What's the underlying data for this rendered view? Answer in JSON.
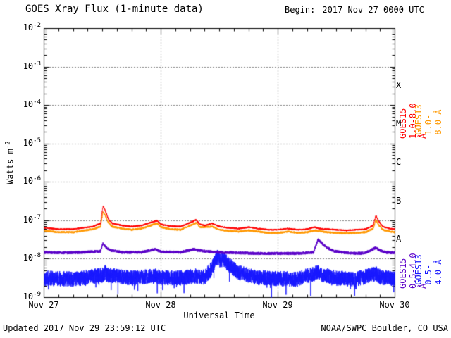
{
  "header": {
    "title": "GOES Xray Flux (1-minute data)",
    "begin_label": "Begin:",
    "begin_value": "2017 Nov 27 0000 UTC"
  },
  "footer": {
    "updated": "Updated 2017 Nov 29 23:59:12 UTC",
    "credit": "NOAA/SWPC Boulder, CO USA"
  },
  "axes": {
    "ylabel_base": "Watts m",
    "ylabel_exp": "-2",
    "xlabel": "Universal Time",
    "y_tick_exponents": [
      "-2",
      "-3",
      "-4",
      "-5",
      "-6",
      "-7",
      "-8",
      "-9"
    ],
    "x_tick_labels": [
      "Nov 27",
      "Nov 28",
      "Nov 29",
      "Nov 30"
    ]
  },
  "legend": {
    "goes15_long": {
      "text": "GOES15 1.0-8.0 Å",
      "color": "#ff0000"
    },
    "goes13_long": {
      "text": "GOES13 1.0-8.0 Å",
      "color": "#ff9900"
    },
    "goes15_short": {
      "text": "GOES15 0.5-4.0 Å",
      "color": "#5c00c8"
    },
    "goes13_short": {
      "text": "GOES13 0.5-4.0 Å",
      "color": "#1a1aff"
    }
  },
  "chart_data": {
    "type": "line",
    "title": "GOES Xray Flux (1-minute data)",
    "xlabel": "Universal Time",
    "ylabel": "Watts m^-2",
    "x_hours_span": 72,
    "x_tick_labels": [
      "Nov 27",
      "Nov 28",
      "Nov 29",
      "Nov 30"
    ],
    "x_day_boundaries_hours": [
      24,
      48
    ],
    "y_exp_range": [
      -2,
      -9
    ],
    "grid_exponents": [
      -3,
      -4,
      -5,
      -6,
      -7,
      -8
    ],
    "flare_classes": [
      {
        "label": "X",
        "mid_exp": -3.5
      },
      {
        "label": "M",
        "mid_exp": -4.5
      },
      {
        "label": "C",
        "mid_exp": -5.5
      },
      {
        "label": "B",
        "mid_exp": -6.5
      },
      {
        "label": "A",
        "mid_exp": -7.5
      }
    ],
    "series": [
      {
        "name": "GOES13 1.0-8.0 Å",
        "color": "#ff9900",
        "seed": 11,
        "noise_dex": 0.028,
        "down_spike_prob": 0,
        "down_spike_dex": 0,
        "points": [
          [
            0,
            5.5e-08
          ],
          [
            3,
            5e-08
          ],
          [
            6,
            5e-08
          ],
          [
            8,
            5.5e-08
          ],
          [
            10,
            6e-08
          ],
          [
            11.6,
            7e-08
          ],
          [
            12.1,
            1.7e-07
          ],
          [
            12.5,
            1.4e-07
          ],
          [
            13.2,
            9e-08
          ],
          [
            14,
            7e-08
          ],
          [
            16,
            6.2e-08
          ],
          [
            18,
            5.8e-08
          ],
          [
            20,
            6.2e-08
          ],
          [
            22.5,
            8e-08
          ],
          [
            23.2,
            8.5e-08
          ],
          [
            24,
            6.8e-08
          ],
          [
            26,
            6e-08
          ],
          [
            28,
            5.8e-08
          ],
          [
            30.5,
            8e-08
          ],
          [
            31.2,
            8.8e-08
          ],
          [
            32,
            6.8e-08
          ],
          [
            34.5,
            7e-08
          ],
          [
            36,
            5.8e-08
          ],
          [
            38,
            5.4e-08
          ],
          [
            40,
            5.2e-08
          ],
          [
            42,
            5.6e-08
          ],
          [
            44,
            5.2e-08
          ],
          [
            46,
            4.8e-08
          ],
          [
            48,
            4.8e-08
          ],
          [
            50,
            5.2e-08
          ],
          [
            52,
            4.8e-08
          ],
          [
            54,
            5e-08
          ],
          [
            55.5,
            5.6e-08
          ],
          [
            58,
            5e-08
          ],
          [
            60,
            4.8e-08
          ],
          [
            62,
            4.7e-08
          ],
          [
            64,
            4.8e-08
          ],
          [
            66,
            5e-08
          ],
          [
            67.5,
            6.2e-08
          ],
          [
            68.1,
            1.05e-07
          ],
          [
            68.6,
            8e-08
          ],
          [
            69.5,
            5.8e-08
          ],
          [
            71,
            5.2e-08
          ],
          [
            72,
            5e-08
          ]
        ]
      },
      {
        "name": "GOES13 0.5-4.0 Å",
        "color": "#1a1aff",
        "seed": 22,
        "noise_dex": 0.2,
        "down_spike_prob": 0.012,
        "down_spike_dex": 0.4,
        "points": [
          [
            0,
            3.2e-09
          ],
          [
            6,
            3e-09
          ],
          [
            12,
            3.8e-09
          ],
          [
            12.5,
            4.5e-09
          ],
          [
            13,
            3.8e-09
          ],
          [
            18,
            3.2e-09
          ],
          [
            23,
            3.6e-09
          ],
          [
            24,
            3.3e-09
          ],
          [
            28,
            3.2e-09
          ],
          [
            31,
            3.6e-09
          ],
          [
            33,
            3.4e-09
          ],
          [
            34.3,
            5.5e-09
          ],
          [
            35,
            8.5e-09
          ],
          [
            35.6,
            1.15e-08
          ],
          [
            36.2,
            9e-09
          ],
          [
            36.8,
            1.05e-08
          ],
          [
            37.5,
            8e-09
          ],
          [
            38.5,
            6e-09
          ],
          [
            40,
            4.5e-09
          ],
          [
            42,
            3.8e-09
          ],
          [
            44,
            3.3e-09
          ],
          [
            48,
            3.1e-09
          ],
          [
            52,
            3e-09
          ],
          [
            56.2,
            4.5e-09
          ],
          [
            57,
            4e-09
          ],
          [
            60,
            3.2e-09
          ],
          [
            64,
            3e-09
          ],
          [
            68.1,
            4.2e-09
          ],
          [
            69,
            3.4e-09
          ],
          [
            72,
            3.1e-09
          ]
        ]
      },
      {
        "name": "GOES15 1.0-8.0 Å",
        "color": "#ff0000",
        "seed": 33,
        "noise_dex": 0.022,
        "down_spike_prob": 0,
        "down_spike_dex": 0,
        "points": [
          [
            0,
            6.5e-08
          ],
          [
            3,
            6e-08
          ],
          [
            6,
            6e-08
          ],
          [
            8,
            6.5e-08
          ],
          [
            10,
            7e-08
          ],
          [
            11.6,
            8.5e-08
          ],
          [
            12.1,
            2.4e-07
          ],
          [
            12.5,
            1.9e-07
          ],
          [
            13.2,
            1.1e-07
          ],
          [
            14,
            8.5e-08
          ],
          [
            16,
            7.5e-08
          ],
          [
            18,
            7e-08
          ],
          [
            20,
            7.5e-08
          ],
          [
            22.5,
            9.5e-08
          ],
          [
            23.2,
            1e-07
          ],
          [
            24,
            8e-08
          ],
          [
            26,
            7.2e-08
          ],
          [
            28,
            7e-08
          ],
          [
            30.5,
            9.5e-08
          ],
          [
            31.2,
            1.05e-07
          ],
          [
            32,
            8e-08
          ],
          [
            33,
            7.5e-08
          ],
          [
            34.5,
            8.5e-08
          ],
          [
            36,
            7e-08
          ],
          [
            38,
            6.5e-08
          ],
          [
            40,
            6.2e-08
          ],
          [
            42,
            6.8e-08
          ],
          [
            44,
            6.2e-08
          ],
          [
            46,
            5.8e-08
          ],
          [
            48,
            5.8e-08
          ],
          [
            50,
            6.2e-08
          ],
          [
            52,
            5.8e-08
          ],
          [
            54,
            6e-08
          ],
          [
            55.5,
            6.8e-08
          ],
          [
            56.5,
            6.2e-08
          ],
          [
            58,
            6e-08
          ],
          [
            60,
            5.8e-08
          ],
          [
            62,
            5.6e-08
          ],
          [
            64,
            5.8e-08
          ],
          [
            66,
            6e-08
          ],
          [
            67.5,
            7.5e-08
          ],
          [
            68.1,
            1.35e-07
          ],
          [
            68.6,
            1e-07
          ],
          [
            69.5,
            7e-08
          ],
          [
            71,
            6.2e-08
          ],
          [
            72,
            6e-08
          ]
        ]
      },
      {
        "name": "GOES15 0.5-4.0 Å",
        "color": "#5c00c8",
        "seed": 44,
        "noise_dex": 0.04,
        "down_spike_prob": 0,
        "down_spike_dex": 0,
        "points": [
          [
            0,
            1.5e-08
          ],
          [
            4,
            1.45e-08
          ],
          [
            8,
            1.5e-08
          ],
          [
            11.6,
            1.6e-08
          ],
          [
            12.1,
            2.6e-08
          ],
          [
            12.6,
            2.1e-08
          ],
          [
            13.5,
            1.7e-08
          ],
          [
            16,
            1.5e-08
          ],
          [
            20,
            1.5e-08
          ],
          [
            22.8,
            1.8e-08
          ],
          [
            24,
            1.55e-08
          ],
          [
            28,
            1.5e-08
          ],
          [
            30.8,
            1.8e-08
          ],
          [
            31.5,
            1.7e-08
          ],
          [
            34,
            1.55e-08
          ],
          [
            36,
            1.5e-08
          ],
          [
            40,
            1.45e-08
          ],
          [
            44,
            1.4e-08
          ],
          [
            48,
            1.4e-08
          ],
          [
            52,
            1.4e-08
          ],
          [
            55.3,
            1.5e-08
          ],
          [
            56.2,
            3.2e-08
          ],
          [
            57,
            2.6e-08
          ],
          [
            58,
            2e-08
          ],
          [
            59.5,
            1.6e-08
          ],
          [
            62,
            1.45e-08
          ],
          [
            64,
            1.4e-08
          ],
          [
            66,
            1.45e-08
          ],
          [
            68.1,
            2e-08
          ],
          [
            68.8,
            1.7e-08
          ],
          [
            70,
            1.5e-08
          ],
          [
            72,
            1.45e-08
          ]
        ]
      }
    ]
  }
}
